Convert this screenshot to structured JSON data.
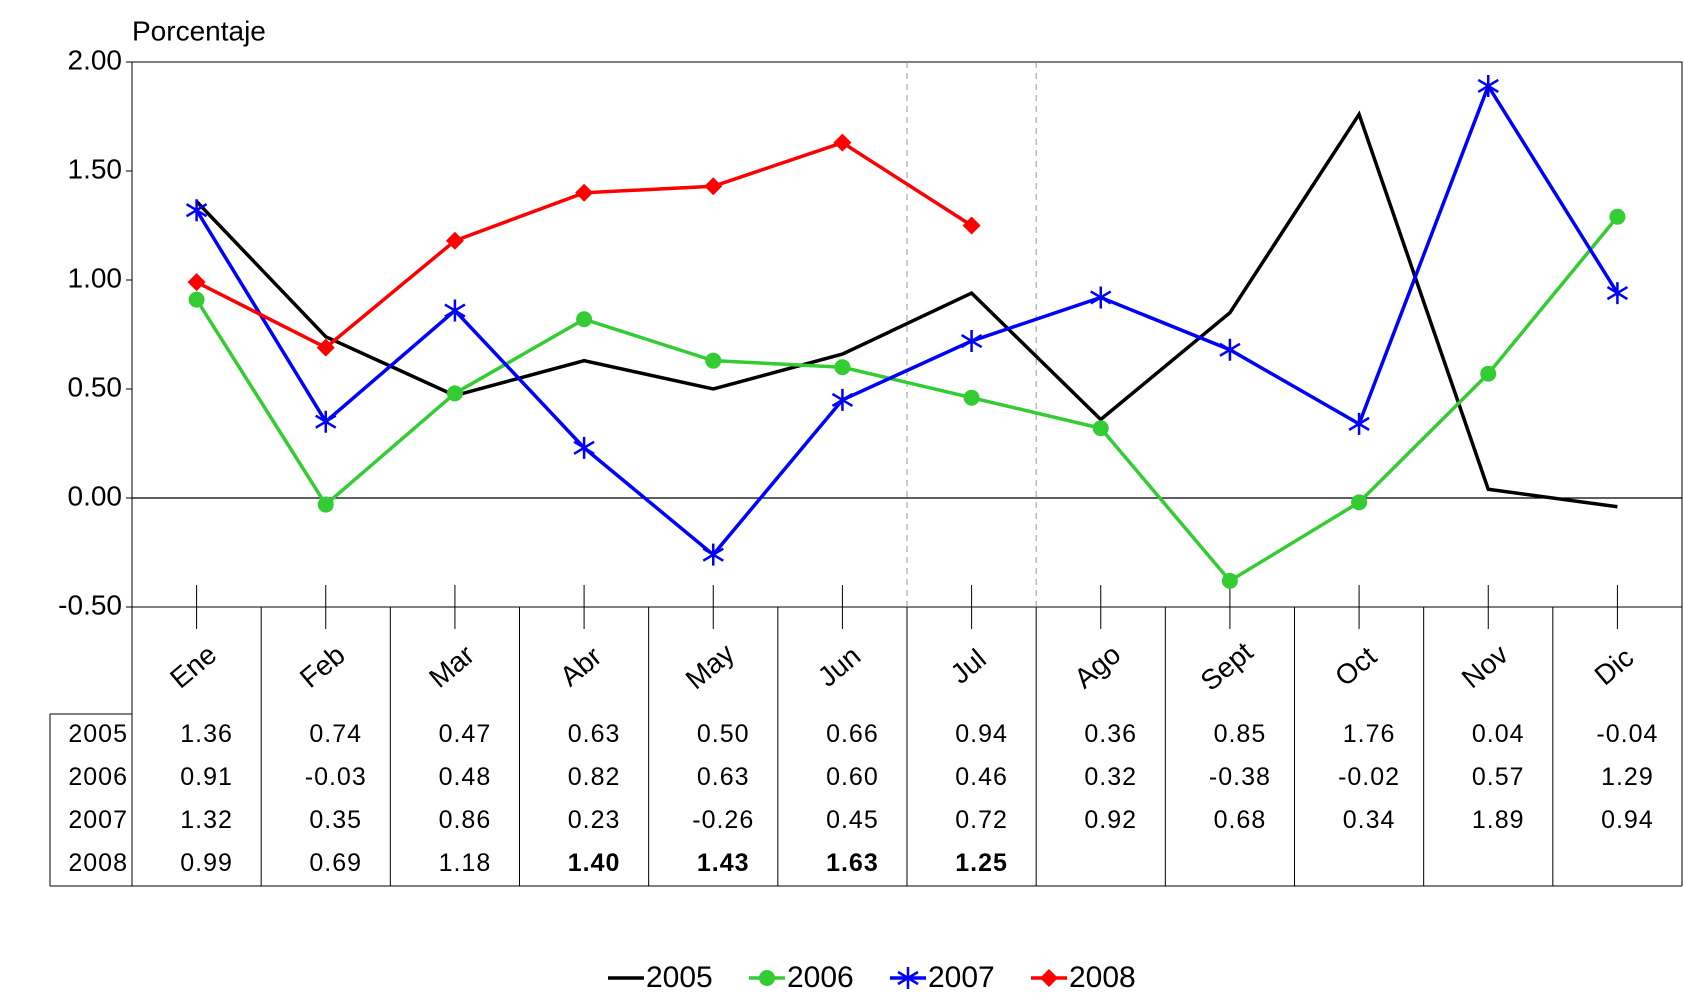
{
  "chart_data": {
    "type": "line",
    "y_label": "Porcentaje",
    "categories": [
      "Ene",
      "Feb",
      "Mar",
      "Abr",
      "May",
      "Jun",
      "Jul",
      "Ago",
      "Sept",
      "Oct",
      "Nov",
      "Dic"
    ],
    "series": [
      {
        "name": "2005",
        "color": "#000000",
        "marker": "none",
        "values": [
          1.36,
          0.74,
          0.47,
          0.63,
          0.5,
          0.66,
          0.94,
          0.36,
          0.85,
          1.76,
          0.04,
          -0.04
        ],
        "value_labels": [
          "1.36",
          "0.74",
          "0.47",
          "0.63",
          "0.50",
          "0.66",
          "0.94",
          "0.36",
          "0.85",
          "1.76",
          "0.04",
          "-0.04"
        ]
      },
      {
        "name": "2006",
        "color": "#33cc33",
        "marker": "circle",
        "values": [
          0.91,
          -0.03,
          0.48,
          0.82,
          0.63,
          0.6,
          0.46,
          0.32,
          -0.38,
          -0.02,
          0.57,
          1.29
        ],
        "value_labels": [
          "0.91",
          "-0.03",
          "0.48",
          "0.82",
          "0.63",
          "0.60",
          "0.46",
          "0.32",
          "-0.38",
          "-0.02",
          "0.57",
          "1.29"
        ]
      },
      {
        "name": "2007",
        "color": "#0000ff",
        "marker": "asterisk",
        "values": [
          1.32,
          0.35,
          0.86,
          0.23,
          -0.26,
          0.45,
          0.72,
          0.92,
          0.68,
          0.34,
          1.89,
          0.94
        ],
        "value_labels": [
          "1.32",
          "0.35",
          "0.86",
          "0.23",
          "-0.26",
          "0.45",
          "0.72",
          "0.92",
          "0.68",
          "0.34",
          "1.89",
          "0.94"
        ]
      },
      {
        "name": "2008",
        "color": "#ff0000",
        "marker": "diamond",
        "values": [
          0.99,
          0.69,
          1.18,
          1.4,
          1.43,
          1.63,
          1.25,
          null,
          null,
          null,
          null,
          null
        ],
        "value_labels": [
          "0.99",
          "0.69",
          "1.18",
          "1.40",
          "1.43",
          "1.63",
          "1.25",
          null,
          null,
          null,
          null,
          null
        ]
      }
    ],
    "ylim": [
      -0.5,
      2
    ],
    "yticks": [
      {
        "value": -0.5,
        "label": "-0.50"
      },
      {
        "value": 0,
        "label": "0.00"
      },
      {
        "value": 0.5,
        "label": "0.50"
      },
      {
        "value": 1,
        "label": "1.00"
      },
      {
        "value": 1.5,
        "label": "1.50"
      },
      {
        "value": 2,
        "label": "2.00"
      }
    ],
    "legend": "bottom"
  }
}
